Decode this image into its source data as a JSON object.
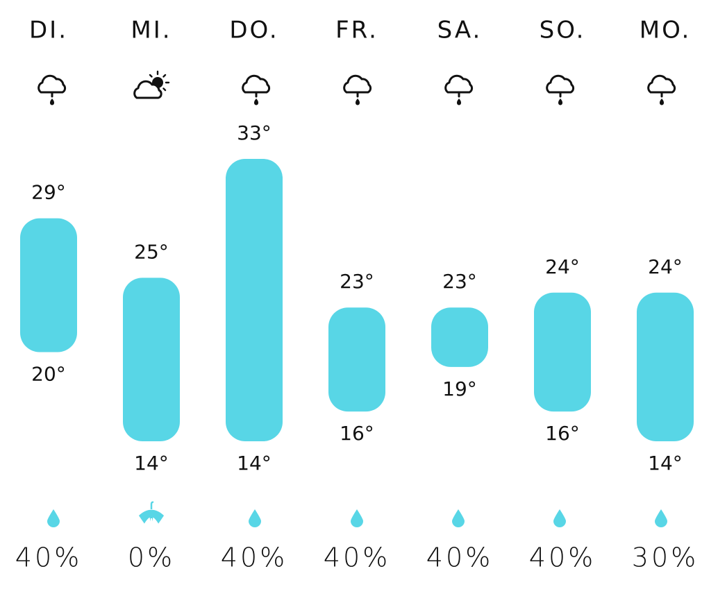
{
  "days": [
    {
      "label": "DI.",
      "high": {
        "value": 29,
        "label": "29°"
      },
      "low": {
        "value": 20,
        "label": "20°"
      },
      "precip": {
        "value": 40,
        "label": "40%"
      }
    },
    {
      "label": "MI.",
      "high": {
        "value": 25,
        "label": "25°"
      },
      "low": {
        "value": 14,
        "label": "14°"
      },
      "precip": {
        "value": 0,
        "label": "0%"
      }
    },
    {
      "label": "DO.",
      "high": {
        "value": 33,
        "label": "33°"
      },
      "low": {
        "value": 14,
        "label": "14°"
      },
      "precip": {
        "value": 40,
        "label": "40%"
      }
    },
    {
      "label": "FR.",
      "high": {
        "value": 23,
        "label": "23°"
      },
      "low": {
        "value": 16,
        "label": "16°"
      },
      "precip": {
        "value": 40,
        "label": "40%"
      }
    },
    {
      "label": "SA.",
      "high": {
        "value": 23,
        "label": "23°"
      },
      "low": {
        "value": 19,
        "label": "19°"
      },
      "precip": {
        "value": 40,
        "label": "40%"
      }
    },
    {
      "label": "SO.",
      "high": {
        "value": 24,
        "label": "24°"
      },
      "low": {
        "value": 16,
        "label": "16°"
      },
      "precip": {
        "value": 40,
        "label": "40%"
      }
    },
    {
      "label": "MO.",
      "high": {
        "value": 24,
        "label": "24°"
      },
      "low": {
        "value": 14,
        "label": "14°"
      },
      "precip": {
        "value": 30,
        "label": "30%"
      }
    }
  ]
}
